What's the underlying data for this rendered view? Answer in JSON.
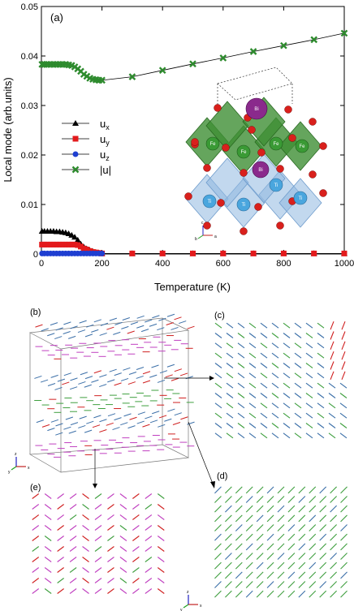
{
  "chart_data": {
    "type": "line",
    "panel_label": "(a)",
    "xlabel": "Temperature (K)",
    "ylabel": "Local mode (arb.units)",
    "xlim": [
      0,
      1000
    ],
    "ylim": [
      0,
      0.05
    ],
    "x_ticks": [
      "0",
      "200",
      "400",
      "600",
      "800",
      "1000"
    ],
    "y_ticks": [
      "0",
      "0.01",
      "0.02",
      "0.03",
      "0.04",
      "0.05"
    ],
    "legend_position": "left",
    "series": [
      {
        "name": "ux",
        "sub": "x",
        "color": "#000000",
        "marker": "triangle",
        "x": [
          2,
          10,
          20,
          30,
          40,
          50,
          60,
          70,
          80,
          90,
          100,
          110,
          120,
          130,
          140,
          150,
          160,
          170,
          180,
          190,
          200,
          300,
          400,
          500,
          600,
          700,
          800,
          900,
          1000
        ],
        "y": [
          0.0046,
          0.0046,
          0.0046,
          0.0046,
          0.0046,
          0.0045,
          0.0045,
          0.0044,
          0.0043,
          0.0041,
          0.0038,
          0.0034,
          0.0028,
          0.002,
          0.0014,
          0.001,
          0.0007,
          0.0005,
          0.0003,
          0.0002,
          0.0001,
          0.0001,
          0.0001,
          0.0001,
          0.0001,
          0.0001,
          0.0001,
          0.0001,
          0.0001
        ]
      },
      {
        "name": "uy",
        "sub": "y",
        "color": "#e31a1c",
        "marker": "square",
        "x": [
          2,
          10,
          20,
          30,
          40,
          50,
          60,
          70,
          80,
          90,
          100,
          110,
          120,
          130,
          140,
          150,
          160,
          170,
          180,
          190,
          200,
          300,
          400,
          500,
          600,
          700,
          800,
          900,
          1000
        ],
        "y": [
          0.0019,
          0.0019,
          0.0019,
          0.0019,
          0.0019,
          0.0019,
          0.0019,
          0.0019,
          0.0019,
          0.0019,
          0.0019,
          0.0019,
          0.0018,
          0.0015,
          0.0011,
          0.0009,
          0.0006,
          0.0004,
          0.0003,
          0.0002,
          0.0001,
          0.0001,
          0.0001,
          0.0001,
          0.0001,
          0.0001,
          0.0001,
          0.0001,
          0.0001
        ]
      },
      {
        "name": "uz",
        "sub": "z",
        "color": "#1f3fd1",
        "marker": "circle",
        "x": [
          2,
          10,
          20,
          30,
          40,
          50,
          60,
          70,
          80,
          90,
          100,
          110,
          120,
          130,
          140,
          150,
          160,
          170,
          180,
          190,
          200
        ],
        "y": [
          0.0001,
          0.0001,
          0.0001,
          0.0001,
          0.0001,
          0.0001,
          0.0001,
          0.0001,
          0.0001,
          0.0001,
          0.0001,
          0.0001,
          0.0001,
          0.0001,
          0.0001,
          0.0001,
          0.0001,
          0.0001,
          0.0001,
          0.0001,
          0.0001
        ]
      },
      {
        "name": "|u|",
        "sub": "",
        "color": "#2e8b2e",
        "marker": "x",
        "x": [
          2,
          10,
          20,
          30,
          40,
          50,
          60,
          70,
          80,
          90,
          100,
          110,
          120,
          130,
          140,
          150,
          160,
          170,
          180,
          190,
          200,
          300,
          400,
          500,
          600,
          700,
          800,
          900,
          1000
        ],
        "y": [
          0.0383,
          0.0383,
          0.0383,
          0.0383,
          0.0383,
          0.0383,
          0.0383,
          0.0383,
          0.0383,
          0.0382,
          0.0381,
          0.0378,
          0.0374,
          0.0369,
          0.0363,
          0.0359,
          0.0355,
          0.0353,
          0.0352,
          0.0351,
          0.0351,
          0.0358,
          0.0371,
          0.0384,
          0.0396,
          0.0409,
          0.0421,
          0.0433,
          0.0446
        ]
      }
    ]
  },
  "crystal": {
    "labels_a": [
      "Bi",
      "Bi"
    ],
    "labels_b": [
      "Fe",
      "Fe",
      "Fe",
      "Fe"
    ],
    "labels_c": [
      "Ti",
      "Ti",
      "Ti",
      "Ti"
    ],
    "axes": [
      "c",
      "b",
      "a"
    ],
    "colors": {
      "octa_top": "#3f8f34",
      "octa_bottom": "#8fb8e0",
      "a_site": "#8a2a8c",
      "oxygen": "#d9201c"
    }
  },
  "panels": {
    "b": "(b)",
    "c": "(c)",
    "d": "(d)",
    "e": "(e)",
    "axes": [
      "z",
      "y",
      "x"
    ],
    "colors": {
      "arrow_blue": "#3b6fa8",
      "arrow_magenta": "#c040c0",
      "arrow_green": "#3f9f3f",
      "arrow_red": "#d02020"
    }
  }
}
